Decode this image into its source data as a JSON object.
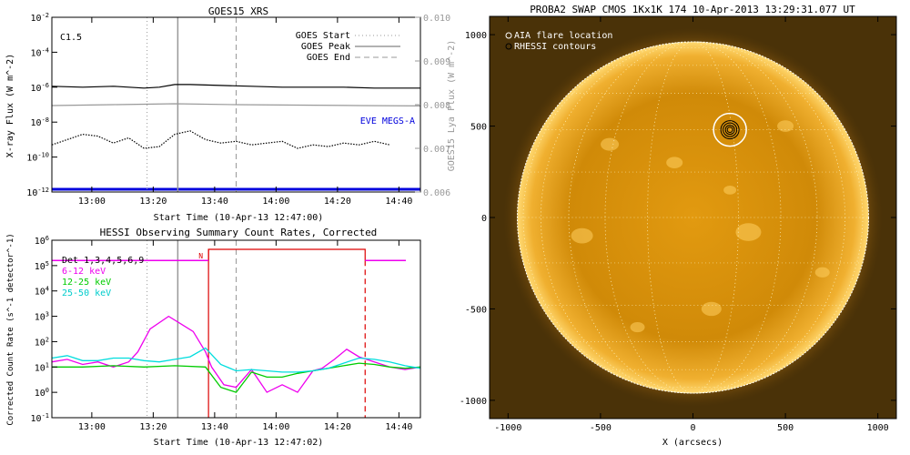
{
  "chart_data": [
    {
      "type": "line",
      "title": "GOES15 XRS",
      "xlabel": "Start Time (10-Apr-13 12:47:00)",
      "ylabel": "X-ray Flux (W m^-2)",
      "ylabel_right": "GOES15 Lya Flux (W m^-2)",
      "annotation": "C1.5",
      "x_ticks": [
        "13:00",
        "13:20",
        "13:40",
        "14:00",
        "14:20",
        "14:40"
      ],
      "x_tick_minutes": [
        13,
        33,
        53,
        73,
        93,
        113
      ],
      "x_range_minutes": [
        0,
        120
      ],
      "y_log_exponents": [
        -12,
        -10,
        -8,
        -6,
        -4,
        -2
      ],
      "y_tick_labels": [
        "10^-12",
        "10^-10",
        "10^-8",
        "10^-6",
        "10^-4",
        "10^-2"
      ],
      "ylim_right": [
        0.006,
        0.01
      ],
      "y_ticks_right": [
        "0.006",
        "0.007",
        "0.008",
        "0.009",
        "0.010"
      ],
      "legend": [
        {
          "label": "GOES Start",
          "style": "dotted",
          "color": "#999999"
        },
        {
          "label": "GOES Peak",
          "style": "solid",
          "color": "#999999"
        },
        {
          "label": "GOES End",
          "style": "dashed",
          "color": "#999999"
        }
      ],
      "vlines_minutes": {
        "start": 31,
        "peak": 41,
        "end": 60
      },
      "eve_label": "EVE MEGS-A",
      "series": [
        {
          "color": "#000000",
          "style": "solid",
          "unit": "log10 W m^-2",
          "x": [
            0,
            10,
            20,
            30,
            35,
            40,
            45,
            55,
            65,
            75,
            85,
            95,
            105,
            120
          ],
          "y": [
            -5.95,
            -6.0,
            -5.95,
            -6.05,
            -6.0,
            -5.85,
            -5.85,
            -5.9,
            -5.95,
            -6.0,
            -6.0,
            -6.0,
            -6.05,
            -6.05
          ]
        },
        {
          "color": "#000000",
          "style": "dotted",
          "unit": "log10 W m^-2",
          "x": [
            0,
            5,
            10,
            15,
            20,
            25,
            30,
            35,
            40,
            45,
            50,
            55,
            60,
            65,
            70,
            75,
            80,
            85,
            90,
            95,
            100,
            105,
            110
          ],
          "y": [
            -9.3,
            -9.0,
            -8.7,
            -8.8,
            -9.2,
            -8.9,
            -9.5,
            -9.4,
            -8.7,
            -8.5,
            -9.0,
            -9.2,
            -9.1,
            -9.3,
            -9.2,
            -9.1,
            -9.5,
            -9.3,
            -9.4,
            -9.2,
            -9.3,
            -9.1,
            -9.3
          ]
        },
        {
          "color": "#999999",
          "style": "solid",
          "unit": "W m^-2",
          "x": [
            0,
            20,
            40,
            60,
            80,
            100,
            120
          ],
          "y": [
            0.00798,
            0.008,
            0.00802,
            0.008,
            0.00799,
            0.00798,
            0.00797
          ]
        }
      ]
    },
    {
      "type": "line",
      "title": "HESSI Observing Summary Count Rates, Corrected",
      "xlabel": "Start Time (10-Apr-13 12:47:02)",
      "ylabel": "Corrected Count Rate (s^-1 detector^-1)",
      "x_ticks": [
        "13:00",
        "13:20",
        "13:40",
        "14:00",
        "14:20",
        "14:40"
      ],
      "x_tick_minutes": [
        13,
        33,
        53,
        73,
        93,
        113
      ],
      "x_range_minutes": [
        0,
        120
      ],
      "y_log_exponents": [
        -1,
        0,
        1,
        2,
        3,
        4,
        5,
        6
      ],
      "y_tick_labels": [
        "10^-1",
        "10^0",
        "10^1",
        "10^2",
        "10^3",
        "10^4",
        "10^5",
        "10^6"
      ],
      "vlines_minutes": {
        "start": 31,
        "peak": 41,
        "end": 60
      },
      "red_lines_minutes": [
        51,
        102
      ],
      "night_label": "N",
      "legend": [
        {
          "label": "Det 1,3,4,5,6,9",
          "color": "#000000"
        },
        {
          "label": "6-12 keV",
          "color": "#ee00ee"
        },
        {
          "label": "12-25 keV",
          "color": "#00cc00"
        },
        {
          "label": "25-50 keV",
          "color": "#00dddd"
        }
      ],
      "series": [
        {
          "name": "6-12 keV",
          "color": "#ee00ee",
          "unit": "log10 counts",
          "x": [
            0,
            5,
            10,
            15,
            20,
            25,
            28,
            32,
            38,
            42,
            46,
            50,
            52,
            56,
            60,
            65,
            70,
            75,
            80,
            85,
            88,
            92,
            96,
            100,
            105,
            110,
            115,
            120
          ],
          "y": [
            1.2,
            1.3,
            1.1,
            1.2,
            1.0,
            1.2,
            1.6,
            2.5,
            3.0,
            2.7,
            2.4,
            1.6,
            1.0,
            0.3,
            0.2,
            0.9,
            0.0,
            0.3,
            0.0,
            0.85,
            0.95,
            1.3,
            1.7,
            1.4,
            1.2,
            1.0,
            0.9,
            1.0
          ]
        },
        {
          "name": "12-25 keV",
          "color": "#00cc00",
          "unit": "log10 counts",
          "x": [
            0,
            10,
            20,
            30,
            40,
            50,
            55,
            60,
            65,
            70,
            75,
            80,
            85,
            90,
            95,
            100,
            105,
            110,
            115,
            120
          ],
          "y": [
            1.0,
            1.0,
            1.05,
            1.0,
            1.05,
            1.0,
            0.2,
            0.0,
            0.8,
            0.6,
            0.6,
            0.75,
            0.85,
            0.95,
            1.05,
            1.15,
            1.1,
            1.0,
            0.95,
            1.0
          ]
        },
        {
          "name": "25-50 keV",
          "color": "#00dddd",
          "unit": "log10 counts",
          "x": [
            0,
            5,
            10,
            15,
            20,
            25,
            30,
            35,
            40,
            45,
            50,
            55,
            60,
            65,
            70,
            75,
            80,
            85,
            90,
            95,
            100,
            105,
            110,
            115,
            120
          ],
          "y": [
            1.35,
            1.45,
            1.25,
            1.25,
            1.35,
            1.35,
            1.25,
            1.2,
            1.3,
            1.4,
            1.75,
            1.1,
            0.85,
            0.9,
            0.85,
            0.8,
            0.8,
            0.85,
            0.95,
            1.15,
            1.35,
            1.3,
            1.2,
            1.05,
            0.95
          ]
        },
        {
          "name": "Det 1,3,4,5,6,9",
          "color": "#ee00ee",
          "style": "attenuator-state",
          "unit": "log10 counts",
          "x": [
            0,
            51,
            102,
            120
          ],
          "y": [
            5.2,
            5.2,
            5.2,
            5.2
          ]
        }
      ]
    },
    {
      "type": "heatmap",
      "title": "PROBA2 SWAP CMOS 1Kx1K 174 10-Apr-2013 13:29:31.077 UT",
      "xlabel": "X (arcsecs)",
      "ylabel": "",
      "xlim": [
        -1100,
        1100
      ],
      "ylim": [
        -1100,
        1100
      ],
      "x_ticks": [
        "-1000",
        "-500",
        "0",
        "500",
        "1000"
      ],
      "x_tick_values": [
        -1000,
        -500,
        0,
        500,
        1000
      ],
      "y_ticks": [
        "-1000",
        "-500",
        "0",
        "500",
        "1000"
      ],
      "y_tick_values": [
        -1000,
        -500,
        0,
        500,
        1000
      ],
      "solar_radius_arcsec": 950,
      "flare_location_arcsec": [
        200,
        480
      ],
      "legend": [
        {
          "label": "AIA flare location",
          "symbol": "circle",
          "color": "#ffffff"
        },
        {
          "label": "RHESSI contours",
          "symbol": "circle",
          "color": "#000000"
        }
      ]
    }
  ]
}
